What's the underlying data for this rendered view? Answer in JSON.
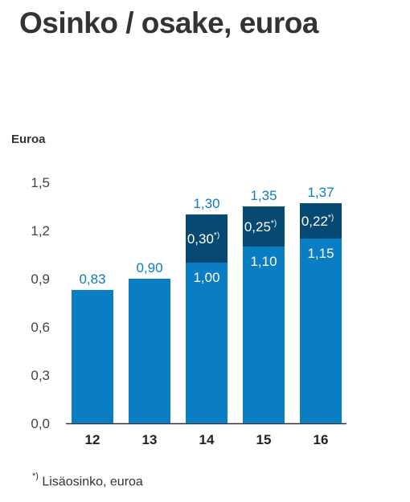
{
  "chart_data": {
    "type": "bar",
    "stacked": true,
    "title": "Osinko / osake, euroa",
    "ylabel": "Euroa",
    "xlabel": "",
    "ylim": [
      0,
      1.5
    ],
    "yticks": [
      "0,0",
      "0,3",
      "0,6",
      "0,9",
      "1,2",
      "1,5"
    ],
    "categories": [
      "12",
      "13",
      "14",
      "15",
      "16"
    ],
    "grid": false,
    "legend": "none",
    "series": [
      {
        "values": [
          0.83,
          0.9,
          1.0,
          1.1,
          1.15
        ],
        "labels": [
          "0,83",
          "0,90",
          "1,00",
          "1,10",
          "1,15"
        ],
        "color": "#0b7dc3"
      },
      {
        "values": [
          0,
          0,
          0.3,
          0.25,
          0.22
        ],
        "labels": [
          "",
          "",
          "0,30",
          "0,25",
          "0,22"
        ],
        "marker": "*)",
        "color": "#064a73"
      }
    ],
    "totals": [
      "",
      "",
      "1,30",
      "1,35",
      "1,37"
    ],
    "label_color": "#0b7dc3"
  },
  "footnote": {
    "marker": "*)",
    "text": "Lisäosinko, euroa"
  }
}
